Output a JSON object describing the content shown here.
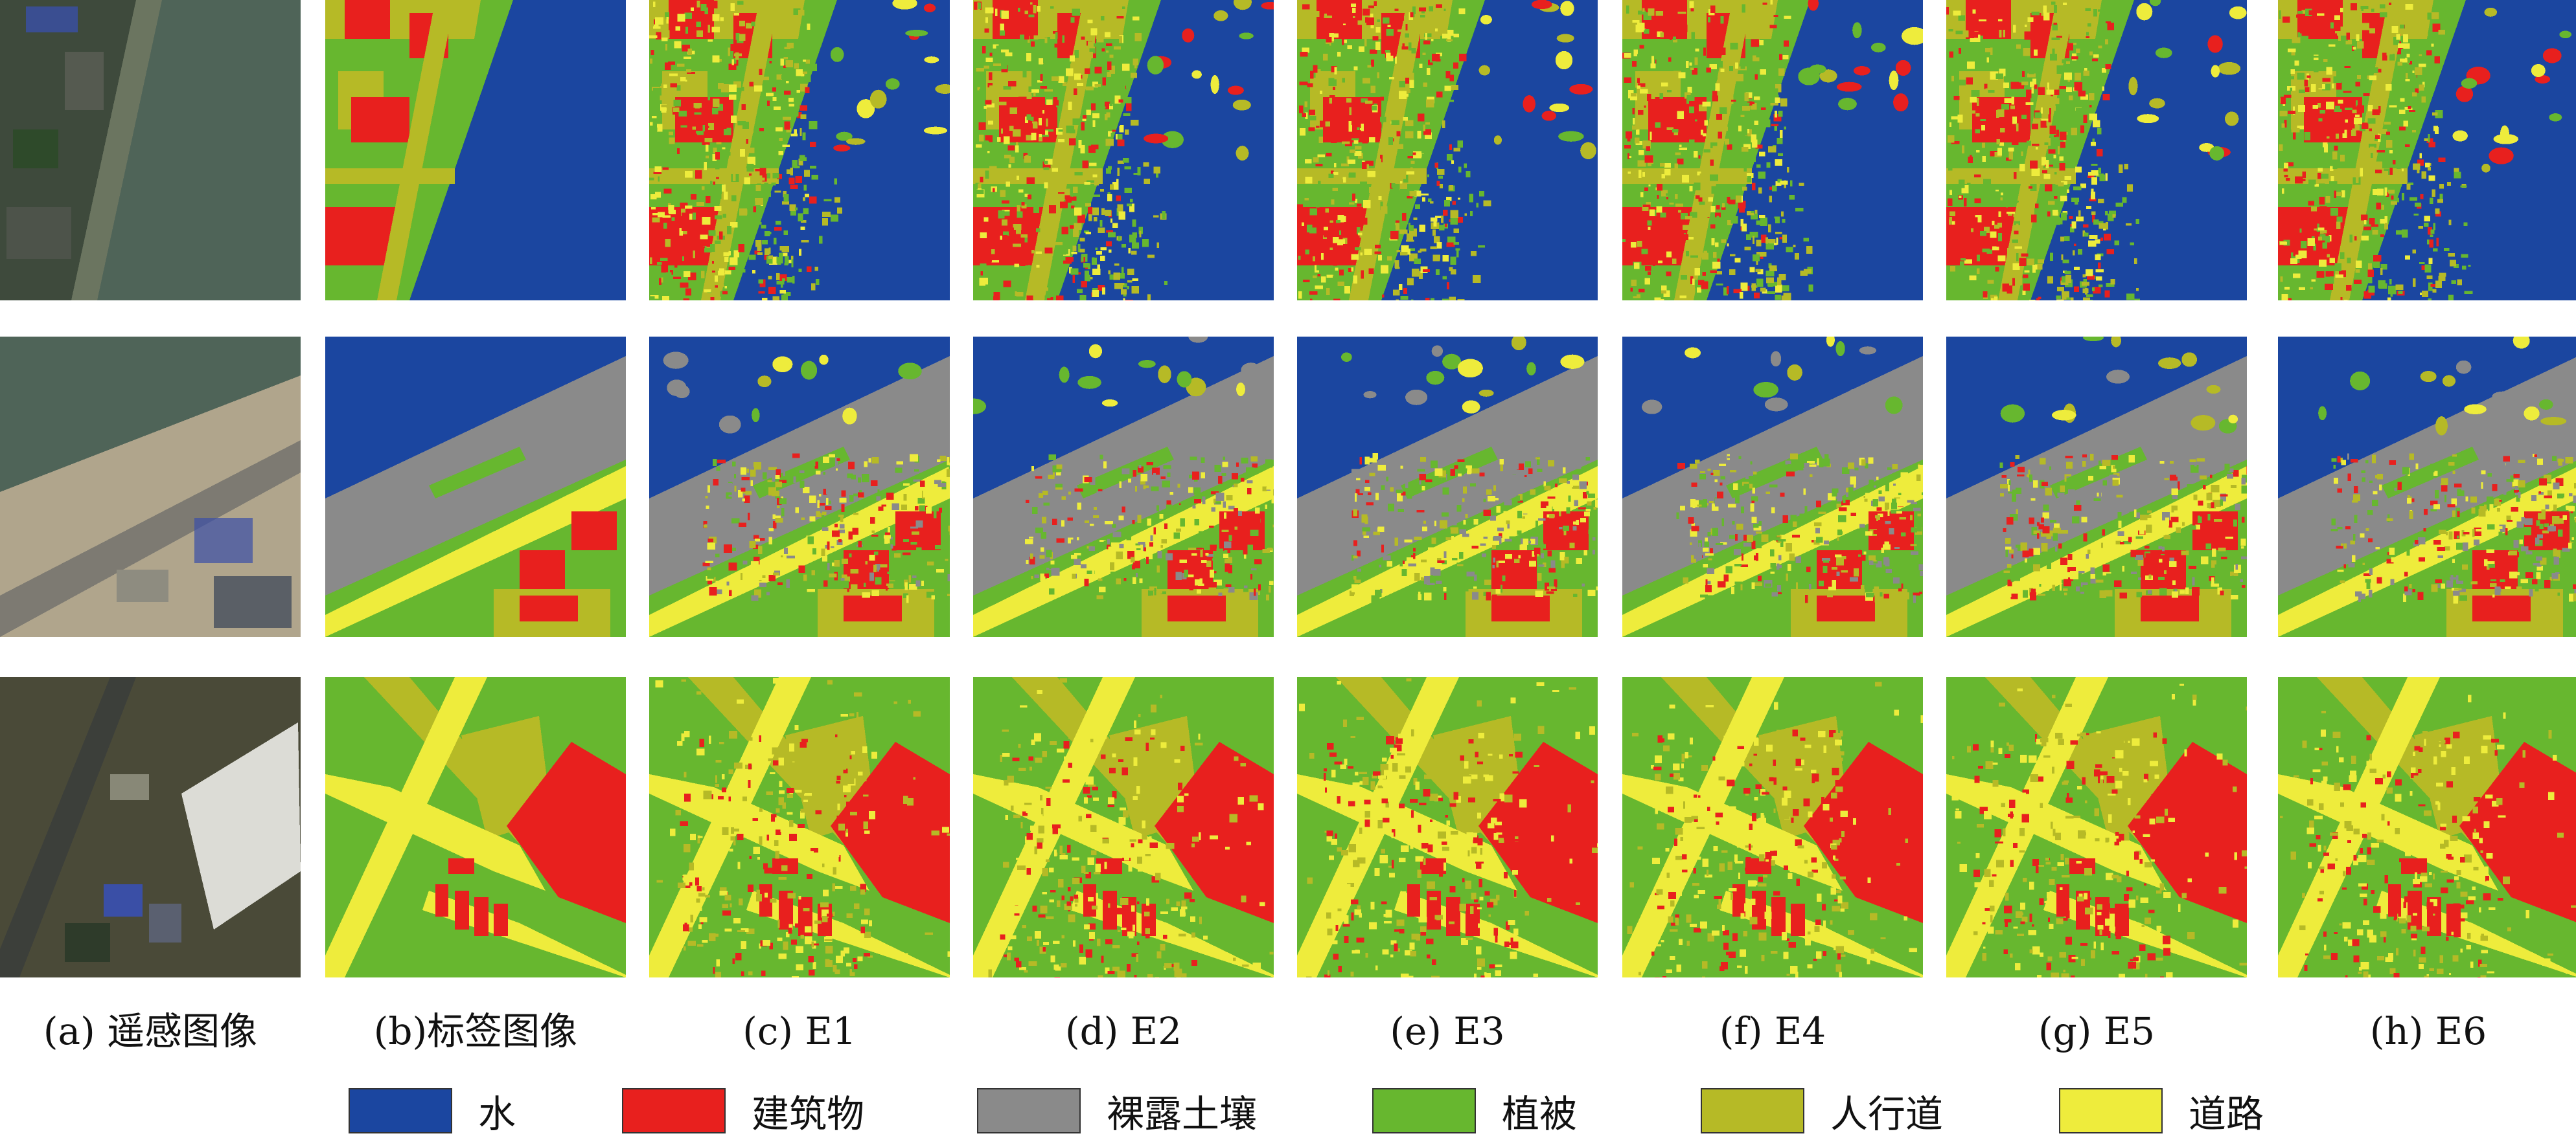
{
  "colors": {
    "water": "#1b46a0",
    "building": "#e8201e",
    "bare_soil": "#8a8a8a",
    "vegetation": "#67b72f",
    "sidewalk": "#b6ba26",
    "road": "#eeec3c",
    "photo_dark": "#3e4a3c",
    "photo_water": "#4f6458",
    "photo_sand": "#b0a58c",
    "photo_roof": "#dcdcd6",
    "photo_blue": "#3a4fa6"
  },
  "columns": [
    {
      "key": "rs",
      "caption": "(a) 遥感图像"
    },
    {
      "key": "label",
      "caption": "(b)标签图像"
    },
    {
      "key": "e1",
      "caption": "(c) E1"
    },
    {
      "key": "e2",
      "caption": "(d) E2"
    },
    {
      "key": "e3",
      "caption": "(e) E3"
    },
    {
      "key": "e4",
      "caption": "(f) E4"
    },
    {
      "key": "e5",
      "caption": "(g) E5"
    },
    {
      "key": "e6",
      "caption": "(h) E6"
    }
  ],
  "legend": [
    {
      "label": "水",
      "color": "#1b46a0"
    },
    {
      "label": "建筑物",
      "color": "#e8201e"
    },
    {
      "label": "裸露土壤",
      "color": "#8a8a8a"
    },
    {
      "label": "植被",
      "color": "#67b72f"
    },
    {
      "label": "人行道",
      "color": "#b6ba26"
    },
    {
      "label": "道路",
      "color": "#eeec3c"
    }
  ]
}
